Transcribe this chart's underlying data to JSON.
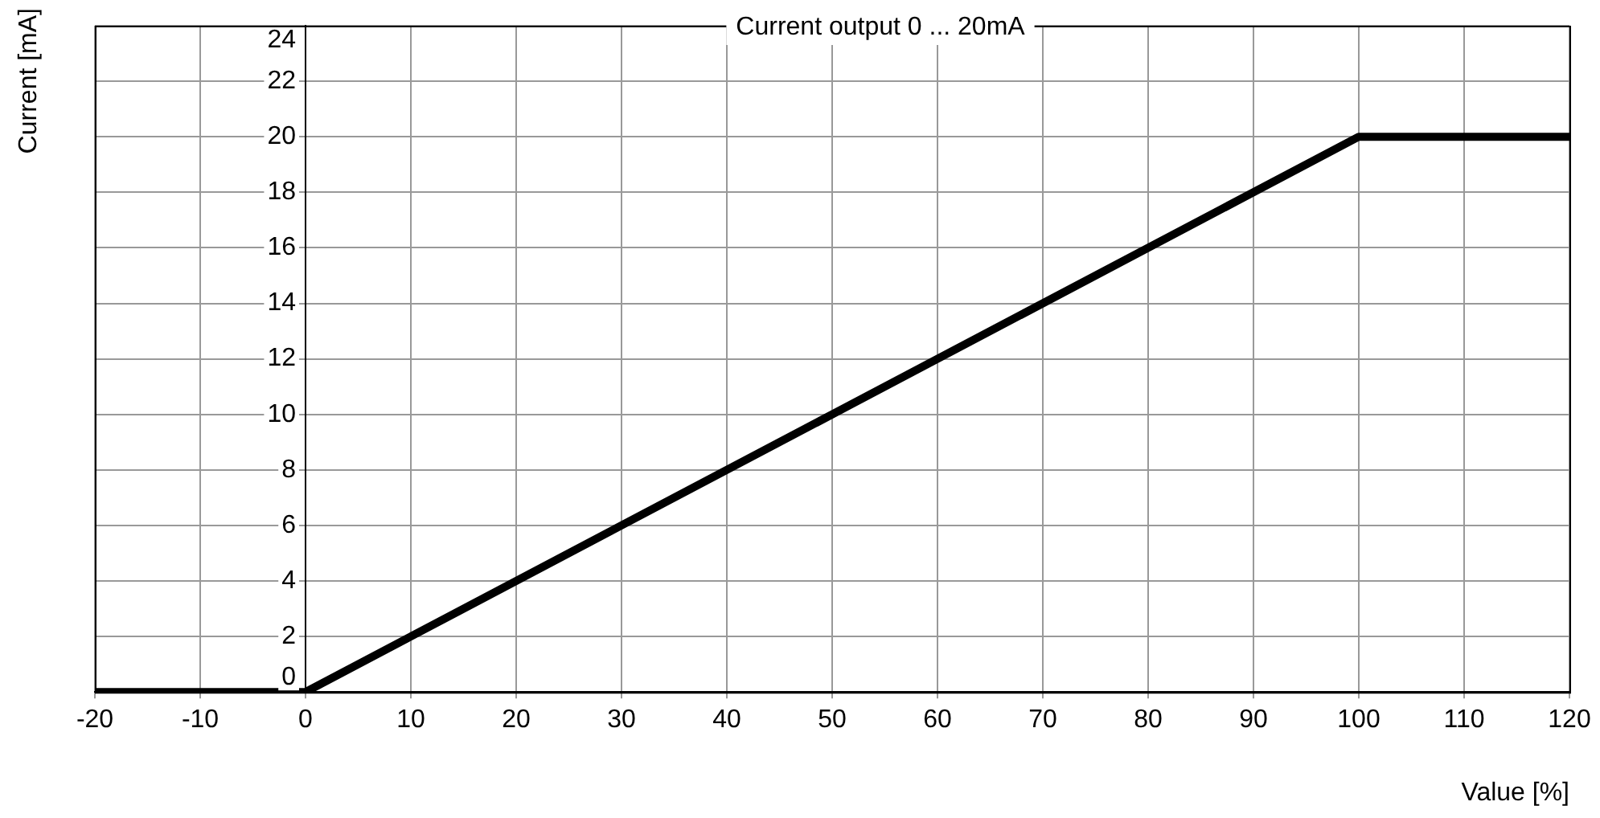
{
  "chart_data": {
    "type": "line",
    "title": "Current output 0 ... 20mA",
    "xlabel": "Value [%]",
    "ylabel": "Current [mA]",
    "x": [
      -20,
      0,
      100,
      120
    ],
    "series": [
      {
        "color": "#000000",
        "values": [
          0,
          0,
          20,
          20
        ]
      }
    ],
    "xlim": [
      -20,
      120
    ],
    "xticks": [
      -20,
      -10,
      0,
      10,
      20,
      30,
      40,
      50,
      60,
      70,
      80,
      90,
      100,
      110,
      120
    ],
    "ylim": [
      0,
      24
    ],
    "yticks": [
      0,
      2,
      4,
      6,
      8,
      10,
      12,
      14,
      16,
      18,
      20,
      22,
      24
    ],
    "grid": true,
    "legend": false,
    "marker": "none",
    "line_style": "solid"
  }
}
